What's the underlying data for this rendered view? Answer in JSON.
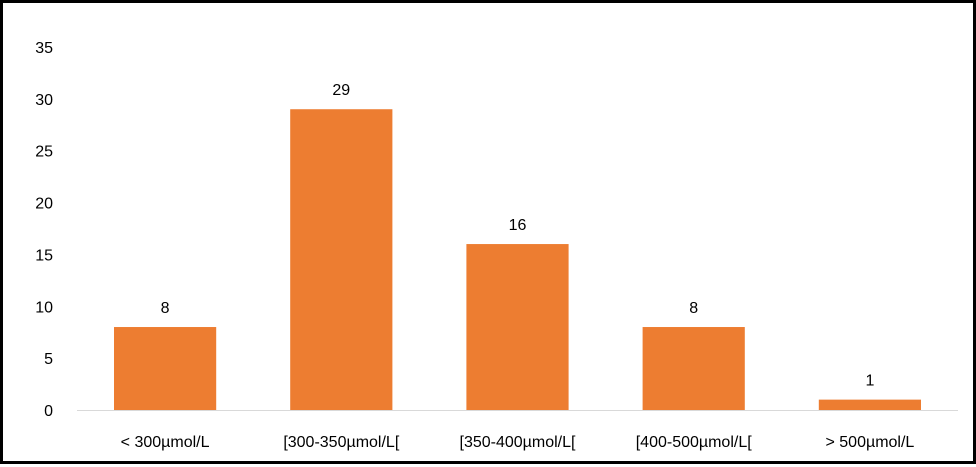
{
  "chart_data": {
    "type": "bar",
    "categories": [
      "< 300µmol/L",
      "[300-350µmol/L[",
      "[350-400µmol/L[",
      "[400-500µmol/L[",
      "> 500µmol/L"
    ],
    "values": [
      8,
      29,
      16,
      8,
      1
    ],
    "data_labels": [
      "8",
      "29",
      "16",
      "8",
      "1"
    ],
    "yticks": [
      "0",
      "5",
      "10",
      "15",
      "20",
      "25",
      "30",
      "35"
    ],
    "ylim": [
      0,
      35
    ],
    "bar_color": "#ED7D31",
    "grid": false,
    "legend": "none",
    "title": "",
    "xlabel": "",
    "ylabel": ""
  }
}
